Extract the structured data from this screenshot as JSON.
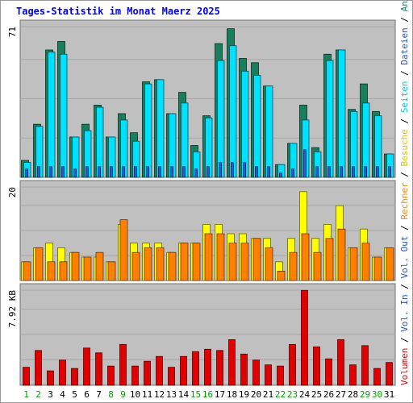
{
  "chart_data": {
    "type": "bar",
    "title": "Tages-Statistik im Monat Maerz 2025",
    "categories": [
      "1",
      "2",
      "3",
      "4",
      "5",
      "6",
      "7",
      "8",
      "9",
      "10",
      "11",
      "12",
      "13",
      "14",
      "15",
      "16",
      "17",
      "18",
      "19",
      "20",
      "21",
      "22",
      "23",
      "24",
      "25",
      "26",
      "27",
      "28",
      "29",
      "30",
      "31"
    ],
    "weekend_days": [
      "1",
      "2",
      "8",
      "9",
      "15",
      "16",
      "22",
      "23",
      "29",
      "30"
    ],
    "panels": [
      {
        "name": "top",
        "max_label": "71",
        "ylim": [
          0,
          71
        ],
        "series": [
          {
            "name": "Anfragen",
            "color": "#187e5c",
            "values": [
              8,
              25,
              60,
              64,
              19,
              25,
              34,
              19,
              30,
              21,
              45,
              46,
              30,
              40,
              15,
              29,
              63,
              70,
              56,
              54,
              43,
              6,
              16,
              34,
              14,
              58,
              60,
              32,
              44,
              31,
              11
            ]
          },
          {
            "name": "Dateien",
            "color": "#00e0ff",
            "values": [
              7,
              24,
              59,
              58,
              19,
              22,
              33,
              19,
              27,
              17,
              44,
              46,
              30,
              35,
              12,
              28,
              55,
              62,
              50,
              48,
              43,
              6,
              16,
              27,
              12,
              55,
              60,
              31,
              35,
              29,
              11
            ]
          },
          {
            "name": "Seiten",
            "color": "#2060e0",
            "values": [
              4,
              5,
              5,
              5,
              4,
              5,
              5,
              5,
              5,
              5,
              5,
              5,
              5,
              5,
              4,
              5,
              7,
              7,
              7,
              5,
              5,
              2,
              4,
              13,
              5,
              5,
              5,
              5,
              5,
              5,
              5
            ]
          }
        ]
      },
      {
        "name": "middle",
        "max_label": "20",
        "ylim": [
          0,
          20
        ],
        "series": [
          {
            "name": "Besuche",
            "color": "#ffff00",
            "values": [
              4,
              7,
              8,
              7,
              6,
              5,
              5,
              4,
              12,
              8,
              8,
              8,
              6,
              8,
              8,
              12,
              12,
              10,
              10,
              9,
              9,
              4,
              9,
              19,
              9,
              12,
              16,
              7,
              11,
              5,
              7
            ]
          },
          {
            "name": "Rechner",
            "color": "#ff8000",
            "values": [
              4,
              7,
              4,
              4,
              6,
              5,
              6,
              4,
              13,
              6,
              7,
              7,
              6,
              8,
              8,
              10,
              10,
              8,
              8,
              9,
              7,
              2,
              6,
              10,
              6,
              9,
              11,
              7,
              8,
              5,
              7
            ]
          }
        ]
      },
      {
        "name": "bottom",
        "max_label": "7.92 KB",
        "ylim": [
          0,
          7.92
        ],
        "series": [
          {
            "name": "Volumen",
            "color": "#e00000",
            "values": [
              1.5,
              2.9,
              1.2,
              2.1,
              1.4,
              3.1,
              2.7,
              1.6,
              3.4,
              1.6,
              2.0,
              2.4,
              1.5,
              2.4,
              2.8,
              3.0,
              2.9,
              3.8,
              2.6,
              2.1,
              1.7,
              1.6,
              3.4,
              7.9,
              3.2,
              2.2,
              3.8,
              1.7,
              3.3,
              1.4,
              1.9
            ]
          }
        ]
      }
    ],
    "right_label": {
      "parts": [
        {
          "text": "Volumen",
          "color": "#e00000"
        },
        {
          "text": " / ",
          "color": "#000000"
        },
        {
          "text": "Vol. In",
          "color": "#2050e0"
        },
        {
          "text": " / ",
          "color": "#000000"
        },
        {
          "text": "Vol. Out",
          "color": "#2050e0"
        },
        {
          "text": " / ",
          "color": "#000000"
        },
        {
          "text": "Rechner",
          "color": "#ff8000"
        },
        {
          "text": " / ",
          "color": "#000000"
        },
        {
          "text": "Besuche",
          "color": "#d8c800"
        },
        {
          "text": " / ",
          "color": "#000000"
        },
        {
          "text": "Seiten",
          "color": "#00c8e8"
        },
        {
          "text": " / ",
          "color": "#000000"
        },
        {
          "text": "Dateien",
          "color": "#2050e0"
        },
        {
          "text": " / ",
          "color": "#000000"
        },
        {
          "text": "Anfragen",
          "color": "#187e5c"
        }
      ]
    },
    "colors": {
      "title": "#0000ff",
      "panel_bg": "#c0c0c0",
      "weekday_label": "#000000",
      "weekend_label": "#00a000"
    }
  }
}
